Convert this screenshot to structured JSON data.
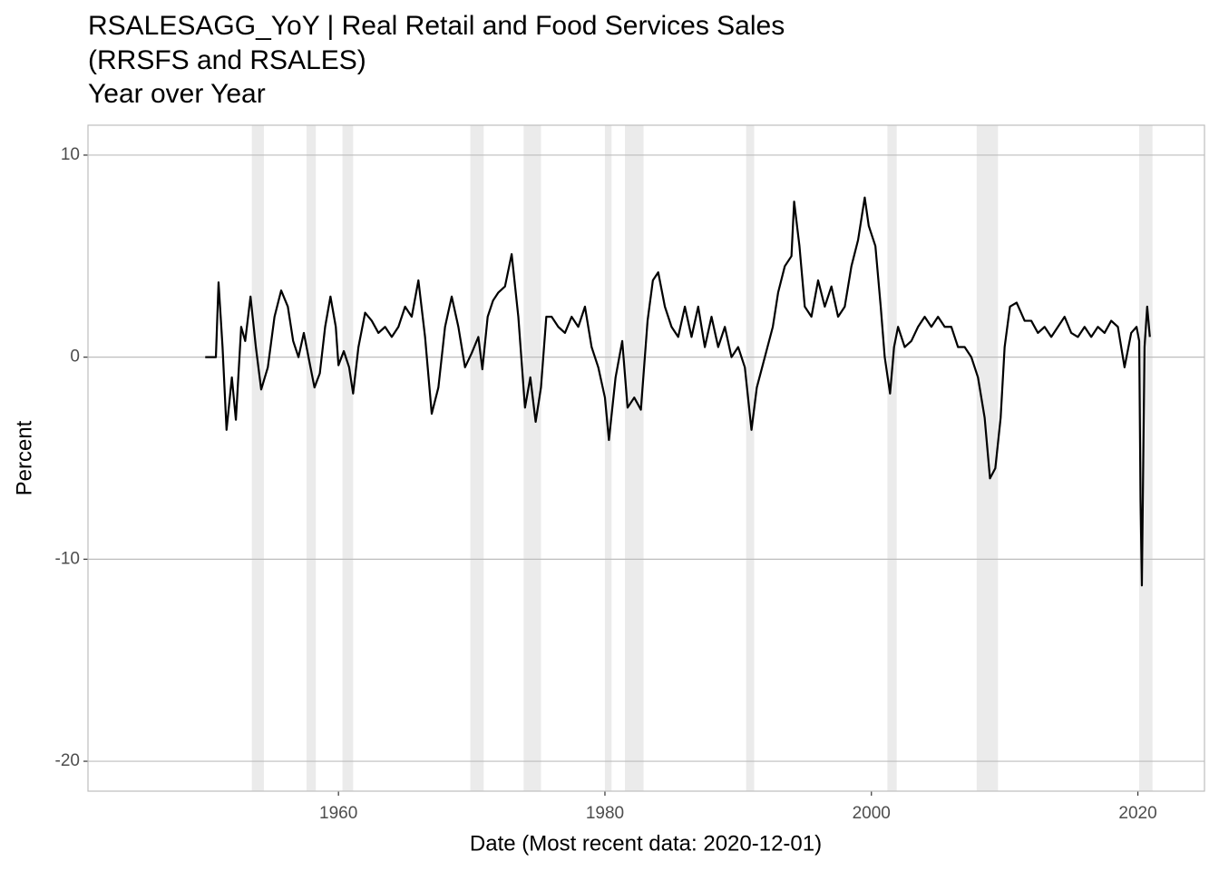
{
  "chart_data": {
    "type": "line",
    "title": [
      "RSALESAGG_YoY | Real Retail and Food Services Sales",
      "(RRSFS and RSALES)"
    ],
    "subtitle": "Year over Year",
    "x_label": "Date (Most recent data: 2020-12-01)",
    "y_label": "Percent",
    "xlim": [
      1941.2,
      2025.0
    ],
    "xticks": [
      1960,
      1980,
      2000,
      2020
    ],
    "ylim": [
      -21.48,
      11.48
    ],
    "yticks": [
      -20,
      -10,
      0,
      10
    ],
    "grid": true,
    "recession_color": "#ebebeb",
    "recessions": [
      [
        1953.5,
        1954.4
      ],
      [
        1957.6,
        1958.3
      ],
      [
        1960.3,
        1961.1
      ],
      [
        1969.9,
        1970.9
      ],
      [
        1973.9,
        1975.2
      ],
      [
        1980.0,
        1980.5
      ],
      [
        1981.5,
        1982.9
      ],
      [
        1990.6,
        1991.2
      ],
      [
        2001.2,
        2001.9
      ],
      [
        2007.9,
        2009.5
      ],
      [
        2020.1,
        2021.1
      ]
    ],
    "series": [
      {
        "color": "#000000",
        "x": [
          1950.0,
          1950.8,
          1951.0,
          1951.3,
          1951.6,
          1952.0,
          1952.3,
          1952.7,
          1953.0,
          1953.4,
          1953.8,
          1954.2,
          1954.7,
          1955.2,
          1955.7,
          1956.2,
          1956.6,
          1957.0,
          1957.4,
          1957.9,
          1958.2,
          1958.6,
          1959.0,
          1959.4,
          1959.8,
          1960.0,
          1960.4,
          1960.8,
          1961.1,
          1961.5,
          1962.0,
          1962.5,
          1963.0,
          1963.5,
          1964.0,
          1964.5,
          1965.0,
          1965.5,
          1966.0,
          1966.5,
          1967.0,
          1967.5,
          1968.0,
          1968.5,
          1969.0,
          1969.5,
          1970.0,
          1970.5,
          1970.8,
          1971.2,
          1971.6,
          1972.0,
          1972.5,
          1973.0,
          1973.5,
          1974.0,
          1974.4,
          1974.8,
          1975.2,
          1975.6,
          1976.0,
          1976.5,
          1977.0,
          1977.5,
          1978.0,
          1978.5,
          1979.0,
          1979.5,
          1980.0,
          1980.3,
          1980.8,
          1981.3,
          1981.7,
          1982.2,
          1982.7,
          1983.2,
          1983.6,
          1984.0,
          1984.5,
          1985.0,
          1985.5,
          1986.0,
          1986.5,
          1987.0,
          1987.5,
          1988.0,
          1988.5,
          1989.0,
          1989.5,
          1990.0,
          1990.5,
          1991.0,
          1991.4,
          1991.8,
          1992.2,
          1992.6,
          1993.0,
          1993.5,
          1994.0,
          1994.2,
          1994.6,
          1995.0,
          1995.5,
          1996.0,
          1996.5,
          1997.0,
          1997.5,
          1998.0,
          1998.5,
          1999.0,
          1999.5,
          1999.8,
          2000.3,
          2000.7,
          2001.0,
          2001.4,
          2001.7,
          2002.0,
          2002.5,
          2003.0,
          2003.5,
          2004.0,
          2004.5,
          2005.0,
          2005.5,
          2006.0,
          2006.5,
          2007.0,
          2007.5,
          2008.0,
          2008.5,
          2008.9,
          2009.3,
          2009.7,
          2010.0,
          2010.4,
          2010.9,
          2011.5,
          2012.0,
          2012.5,
          2013.0,
          2013.5,
          2014.0,
          2014.5,
          2015.0,
          2015.5,
          2016.0,
          2016.5,
          2017.0,
          2017.5,
          2018.0,
          2018.5,
          2019.0,
          2019.5,
          2019.9,
          2020.1,
          2020.2,
          2020.3,
          2020.5,
          2020.7,
          2020.9
        ],
        "values": [
          0,
          0,
          3.7,
          0.5,
          -3.6,
          -1,
          -3.1,
          1.5,
          0.8,
          3.0,
          0.5,
          -1.6,
          -0.5,
          2.0,
          3.3,
          2.5,
          0.8,
          0.0,
          1.2,
          -0.5,
          -1.5,
          -0.8,
          1.5,
          3.0,
          1.5,
          -0.4,
          0.3,
          -0.5,
          -1.8,
          0.5,
          2.2,
          1.8,
          1.2,
          1.5,
          1.0,
          1.5,
          2.5,
          2.0,
          3.8,
          1.0,
          -2.8,
          -1.5,
          1.5,
          3.0,
          1.5,
          -0.5,
          0.2,
          1.0,
          -0.6,
          2.0,
          2.8,
          3.2,
          3.5,
          5.1,
          2.0,
          -2.5,
          -1.0,
          -3.2,
          -1.5,
          2.0,
          2.0,
          1.5,
          1.2,
          2.0,
          1.5,
          2.5,
          0.5,
          -0.5,
          -2.0,
          -4.1,
          -1.0,
          0.8,
          -2.5,
          -2.0,
          -2.6,
          1.8,
          3.8,
          4.2,
          2.5,
          1.5,
          1.0,
          2.5,
          1.0,
          2.5,
          0.5,
          2.0,
          0.5,
          1.5,
          0.0,
          0.5,
          -0.5,
          -3.6,
          -1.5,
          -0.5,
          0.5,
          1.5,
          3.2,
          4.5,
          5.0,
          7.7,
          5.5,
          2.5,
          2.0,
          3.8,
          2.5,
          3.5,
          2.0,
          2.5,
          4.5,
          5.8,
          7.9,
          6.5,
          5.5,
          2.5,
          0.0,
          -1.8,
          0.5,
          1.5,
          0.5,
          0.8,
          1.5,
          2.0,
          1.5,
          2.0,
          1.5,
          1.5,
          0.5,
          0.5,
          0.0,
          -1.0,
          -3.0,
          -6.0,
          -5.5,
          -3.0,
          0.5,
          2.5,
          2.7,
          1.8,
          1.8,
          1.2,
          1.5,
          1.0,
          1.5,
          2.0,
          1.2,
          1.0,
          1.5,
          1.0,
          1.5,
          1.2,
          1.8,
          1.5,
          -0.5,
          1.2,
          1.5,
          0.8,
          -7.0,
          -11.3,
          0.5,
          2.5,
          1.0
        ]
      }
    ]
  }
}
